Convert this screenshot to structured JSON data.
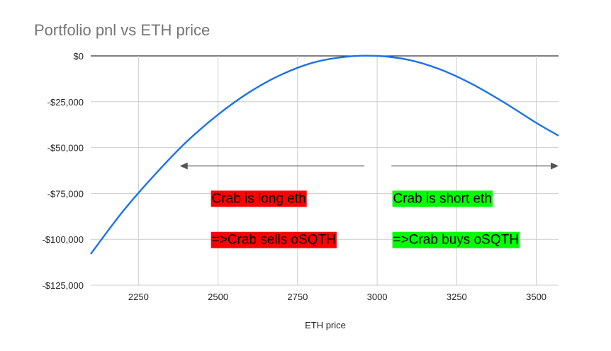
{
  "chart_data": {
    "type": "line",
    "title": "Portfolio pnl vs ETH price",
    "xlabel": "ETH price",
    "ylabel": "",
    "xlim": [
      2100,
      3570
    ],
    "ylim": [
      -125000,
      0
    ],
    "x_ticks": [
      2250,
      2500,
      2750,
      3000,
      3250,
      3500
    ],
    "x_tick_labels": [
      "2250",
      "2500",
      "2750",
      "3000",
      "3250",
      "3500"
    ],
    "y_ticks": [
      0,
      -25000,
      -50000,
      -75000,
      -100000,
      -125000
    ],
    "y_tick_labels": [
      "$0",
      "-$25,000",
      "-$50,000",
      "-$75,000",
      "-$100,000",
      "-$125,000"
    ],
    "grid": true,
    "series": [
      {
        "color": "#1a73e8",
        "x": [
          2100,
          2200,
          2300,
          2400,
          2500,
          2600,
          2700,
          2800,
          2900,
          3000,
          3100,
          3200,
          3300,
          3400,
          3500,
          3570
        ],
        "y": [
          -108000,
          -85000,
          -65000,
          -47000,
          -32000,
          -19600,
          -10100,
          -3600,
          -500,
          0,
          -2200,
          -7500,
          -15500,
          -25500,
          -36500,
          -43500
        ]
      }
    ],
    "annotations": [
      {
        "text": "Crab is long eth",
        "background": "#ff0000",
        "x": 2480,
        "y": -80000
      },
      {
        "text": "=>Crab sells oSQTH",
        "background": "#ff0000",
        "x": 2480,
        "y": -102500
      },
      {
        "text": "Crab is short eth",
        "background": "#00ff00",
        "x": 3050,
        "y": -80000
      },
      {
        "text": "=>Crab buys oSQTH",
        "background": "#00ff00",
        "x": 3050,
        "y": -102500
      }
    ],
    "arrows": [
      {
        "direction": "left",
        "from_x": 2960,
        "to_x": 2380,
        "y": -60000
      },
      {
        "direction": "right",
        "from_x": 3045,
        "to_x": 3570,
        "y": -60000
      }
    ]
  }
}
